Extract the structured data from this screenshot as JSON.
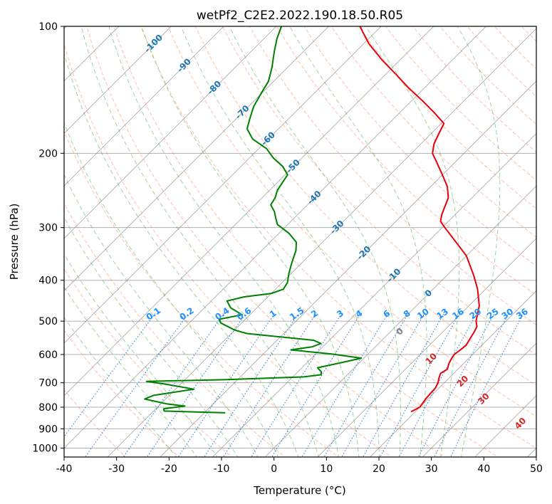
{
  "chart_data": {
    "type": "skew-t log-p",
    "title": "wetPf2_C2E2.2022.190.18.50.R05",
    "xlabel": "Temperature (°C)",
    "ylabel": "Pressure (hPa)",
    "xlim": [
      -40,
      50
    ],
    "ylim": [
      1050,
      100
    ],
    "x_ticks": [
      -40,
      -30,
      -20,
      -10,
      0,
      10,
      20,
      30,
      40,
      50
    ],
    "y_ticks": [
      1000,
      900,
      800,
      700,
      600,
      500,
      400,
      300,
      200,
      100
    ],
    "grid": true,
    "colors": {
      "temperature": "#e8000b",
      "dewpoint": "#008000",
      "isotherm": "#8c8c8c",
      "dry_adiabat": "#ff7f50",
      "moist_adiabat": "#2ca02c",
      "mixing_ratio": "#1e78dc",
      "isotherm_label": "#1f77b4",
      "mixing_label": "#1e90ff",
      "theta_label": "#d62728",
      "zero_label": "#808080"
    },
    "series": [
      {
        "name": "Temperature",
        "points": [
          [
            19.2,
            820
          ],
          [
            20.0,
            800
          ],
          [
            19.5,
            760
          ],
          [
            19.3,
            720
          ],
          [
            18.8,
            700
          ],
          [
            18.0,
            680
          ],
          [
            17.5,
            665
          ],
          [
            18.0,
            650
          ],
          [
            17.2,
            630
          ],
          [
            16.8,
            615
          ],
          [
            16.5,
            600
          ],
          [
            16.8,
            585
          ],
          [
            17.0,
            570
          ],
          [
            16.5,
            550
          ],
          [
            16.0,
            530
          ],
          [
            15.5,
            515
          ],
          [
            14.3,
            500
          ],
          [
            12.0,
            460
          ],
          [
            8.5,
            420
          ],
          [
            5.2,
            390
          ],
          [
            0.0,
            350
          ],
          [
            -5.5,
            320
          ],
          [
            -9.5,
            300
          ],
          [
            -11.5,
            290
          ],
          [
            -12.5,
            280
          ],
          [
            -13.3,
            270
          ],
          [
            -14.5,
            255
          ],
          [
            -16.8,
            240
          ],
          [
            -20.0,
            225
          ],
          [
            -23.5,
            210
          ],
          [
            -26.0,
            200
          ],
          [
            -27.5,
            190
          ],
          [
            -28.5,
            180
          ],
          [
            -29.5,
            170
          ],
          [
            -33.5,
            160
          ],
          [
            -38.0,
            150
          ],
          [
            -43.0,
            140
          ],
          [
            -48.0,
            130
          ],
          [
            -53.5,
            120
          ],
          [
            -59.0,
            110
          ],
          [
            -62.5,
            103
          ],
          [
            -64.0,
            100
          ]
        ]
      },
      {
        "name": "Dewpoint",
        "points": [
          [
            -16.0,
            825
          ],
          [
            -28.0,
            817
          ],
          [
            -28.5,
            807
          ],
          [
            -25.0,
            795
          ],
          [
            -29.0,
            785
          ],
          [
            -34.0,
            765
          ],
          [
            -33.0,
            750
          ],
          [
            -26.5,
            725
          ],
          [
            -33.0,
            705
          ],
          [
            -37.0,
            695
          ],
          [
            -22.0,
            688
          ],
          [
            -8.0,
            678
          ],
          [
            -5.0,
            670
          ],
          [
            -5.5,
            660
          ],
          [
            -7.0,
            645
          ],
          [
            -3.0,
            625
          ],
          [
            -0.5,
            612
          ],
          [
            -7.0,
            598
          ],
          [
            -15.5,
            585
          ],
          [
            -12.0,
            575
          ],
          [
            -11.0,
            565
          ],
          [
            -13.0,
            555
          ],
          [
            -27.0,
            535
          ],
          [
            -30.0,
            525
          ],
          [
            -34.0,
            505
          ],
          [
            -35.0,
            495
          ],
          [
            -31.5,
            483
          ],
          [
            -35.0,
            465
          ],
          [
            -37.0,
            448
          ],
          [
            -34.5,
            438
          ],
          [
            -30.0,
            430
          ],
          [
            -28.5,
            420
          ],
          [
            -29.0,
            405
          ],
          [
            -30.5,
            385
          ],
          [
            -31.5,
            370
          ],
          [
            -32.5,
            355
          ],
          [
            -33.5,
            340
          ],
          [
            -35.0,
            325
          ],
          [
            -38.0,
            310
          ],
          [
            -42.0,
            295
          ],
          [
            -43.5,
            285
          ],
          [
            -45.0,
            275
          ],
          [
            -47.0,
            265
          ],
          [
            -47.5,
            255
          ],
          [
            -48.5,
            245
          ],
          [
            -49.0,
            235
          ],
          [
            -49.5,
            225
          ],
          [
            -52.0,
            215
          ],
          [
            -55.5,
            205
          ],
          [
            -58.5,
            195
          ],
          [
            -63.0,
            185
          ],
          [
            -66.0,
            175
          ],
          [
            -67.5,
            165
          ],
          [
            -69.0,
            155
          ],
          [
            -70.0,
            145
          ],
          [
            -71.0,
            135
          ],
          [
            -73.0,
            125
          ],
          [
            -75.5,
            115
          ],
          [
            -77.5,
            107
          ],
          [
            -79.0,
            100
          ]
        ]
      }
    ],
    "isotherm_labels": [
      "-100",
      "-90",
      "-80",
      "-70",
      "-60",
      "-50",
      "-40",
      "-30",
      "-20",
      "-10",
      "0"
    ],
    "mixing_ratio_labels": [
      "0.1",
      "0.2",
      "0.4",
      "0.6",
      "1",
      "1.5",
      "2",
      "3",
      "4",
      "6",
      "8",
      "10",
      "13",
      "16",
      "20",
      "25",
      "30",
      "36"
    ],
    "theta_labels": [
      "10",
      "20",
      "30",
      "40"
    ]
  }
}
